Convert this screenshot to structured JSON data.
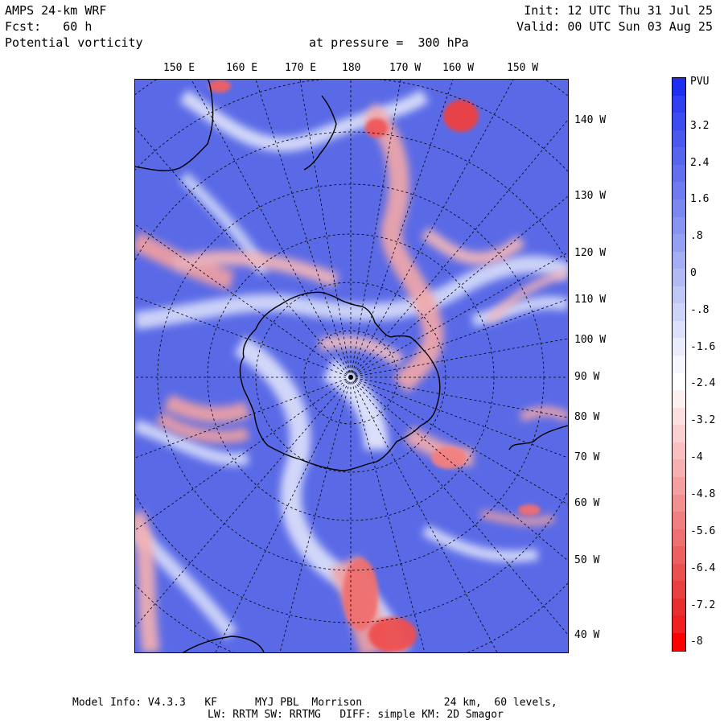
{
  "header": {
    "model": "AMPS 24-km WRF",
    "forecast": "Fcst:   60 h",
    "field": "Potential vorticity",
    "level": "at pressure =  300 hPa",
    "init": "Init: 12 UTC Thu 31 Jul 25",
    "valid": "Valid: 00 UTC Sun 03 Aug 25"
  },
  "map": {
    "top_lon_labels": [
      "150 E",
      "160 E",
      "170 E",
      "180",
      "170 W",
      "160 W",
      "150 W"
    ],
    "right_lon_labels": [
      "140 W",
      "130 W",
      "120 W",
      "110 W",
      "100 W",
      "90 W",
      "80 W",
      "70 W",
      "60 W",
      "50 W",
      "40 W"
    ]
  },
  "colorbar": {
    "unit": "PVU",
    "labels": [
      "3.2",
      "2.4",
      "1.6",
      ".8",
      "0",
      "-.8",
      "-1.6",
      "-2.4",
      "-3.2",
      "-4",
      "-4.8",
      "-5.6",
      "-6.4",
      "-7.2",
      "-8"
    ],
    "colors": [
      "#1e2ef0",
      "#2e3ef0",
      "#3c4cf0",
      "#4a58ee",
      "#5664ee",
      "#6270ee",
      "#6e7cf0",
      "#7a88f0",
      "#8894f2",
      "#96a0f2",
      "#a4aef4",
      "#b2baf4",
      "#c0c8f6",
      "#ced4f8",
      "#dce0fa",
      "#eaecfc",
      "#f6f6fe",
      "#ffffff",
      "#fdf0f0",
      "#fce0e0",
      "#fad0d0",
      "#f8c0c0",
      "#f6b0b0",
      "#f4a0a0",
      "#f29090",
      "#f08080",
      "#ee7070",
      "#ec6060",
      "#ea5050",
      "#e84040",
      "#e63030",
      "#f02020",
      "#ff0000"
    ]
  },
  "footer": {
    "line1": "Model Info: V4.3.3   KF      MYJ PBL  Morrison             24 km,  60 levels,",
    "line2": "LW: RRTM SW: RRTMG   DIFF: simple KM: 2D Smagor"
  }
}
